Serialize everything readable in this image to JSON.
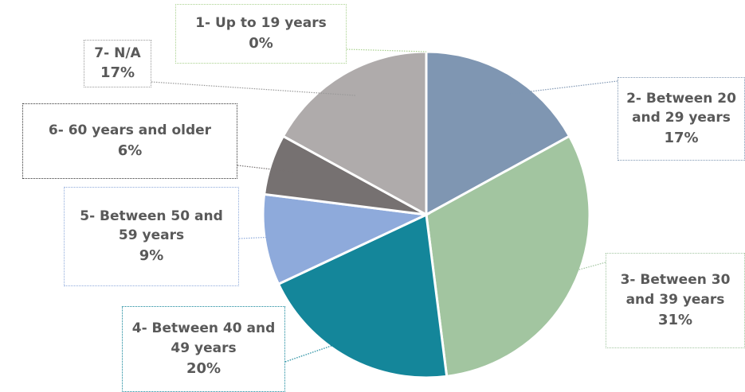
{
  "chart_data": {
    "type": "pie",
    "categories": [
      "1- Up to 19 years",
      "2- Between 20 and 29 years",
      "3- Between 30 and 39 years",
      "4- Between 40 and 49 years",
      "5- Between 50 and 59 years",
      "6- 60 years and older",
      "7- N/A"
    ],
    "values": [
      0,
      17,
      31,
      20,
      9,
      6,
      17
    ],
    "value_labels": [
      "0%",
      "17%",
      "31%",
      "20%",
      "9%",
      "6%",
      "17%"
    ],
    "colors": [
      "#a9d18e",
      "#7f96b2",
      "#a2c5a0",
      "#14869a",
      "#8eaadb",
      "#767171",
      "#afabab"
    ]
  }
}
